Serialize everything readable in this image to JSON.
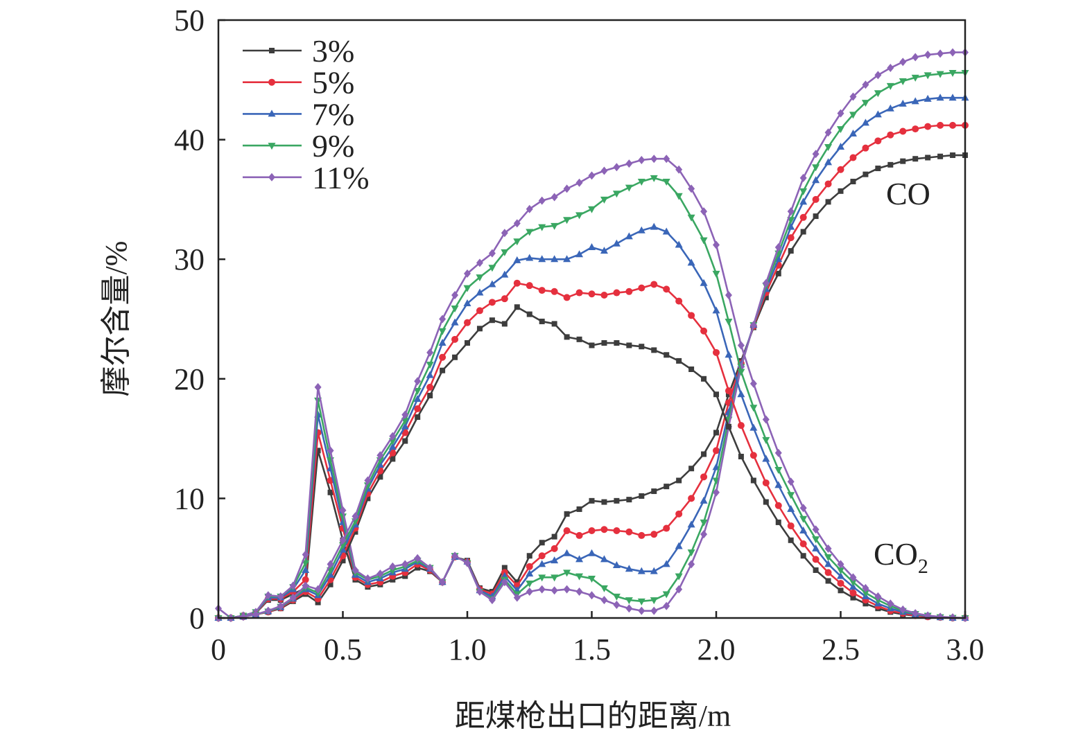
{
  "chart_data": {
    "type": "line",
    "title": "",
    "xlabel": "距煤枪出口的距离/m",
    "ylabel": "摩尔含量/%",
    "xlim": [
      0,
      3.0
    ],
    "ylim": [
      0,
      50
    ],
    "xticks": [
      "0",
      "0.5",
      "1.0",
      "1.5",
      "2.0",
      "2.5",
      "3.0"
    ],
    "xtick_values": [
      0,
      0.5,
      1.0,
      1.5,
      2.0,
      2.5,
      3.0
    ],
    "yticks": [
      "0",
      "10",
      "20",
      "30",
      "40",
      "50"
    ],
    "ytick_values": [
      0,
      10,
      20,
      30,
      40,
      50
    ],
    "grid": false,
    "legend_position": "top-left",
    "legend": [
      {
        "label": "3%",
        "color": "#3d3d3d",
        "marker": "square"
      },
      {
        "label": "5%",
        "color": "#e5303e",
        "marker": "circle"
      },
      {
        "label": "7%",
        "color": "#3a66b8",
        "marker": "triangle-up"
      },
      {
        "label": "9%",
        "color": "#3aa762",
        "marker": "triangle-down"
      },
      {
        "label": "11%",
        "color": "#8c63b6",
        "marker": "diamond"
      }
    ],
    "annotations": [
      {
        "text": "CO",
        "target": "CO"
      },
      {
        "text": "CO",
        "sub": "2",
        "target": "CO2"
      }
    ],
    "x_start": 0,
    "x_step": 0.05,
    "series": [
      {
        "name": "3% CO",
        "group": "CO",
        "legend": 0,
        "values": [
          0,
          0,
          0.2,
          0.4,
          1.5,
          1.5,
          2,
          2.5,
          14,
          10.5,
          6.5,
          3.2,
          2.6,
          2.8,
          3.2,
          3.5,
          4.2,
          3.9,
          3,
          5.1,
          4.8,
          2.5,
          2.2,
          4.2,
          3,
          5.2,
          6.3,
          6.8,
          8.7,
          9.1,
          9.8,
          9.7,
          9.8,
          9.9,
          10.2,
          10.6,
          11,
          11.5,
          12.5,
          13.7,
          15.5,
          18.7,
          21.5,
          24.3,
          26.8,
          28.8,
          30.7,
          32.3,
          33.6,
          34.8,
          35.7,
          36.5,
          37.1,
          37.6,
          37.9,
          38.2,
          38.4,
          38.5,
          38.6,
          38.7,
          38.7
        ]
      },
      {
        "name": "5% CO",
        "group": "CO",
        "legend": 1,
        "values": [
          0,
          0,
          0.2,
          0.4,
          1.6,
          1.6,
          2.2,
          3.2,
          15.5,
          11.5,
          7.5,
          3.4,
          2.8,
          3,
          3.5,
          3.8,
          4.5,
          4,
          3,
          5.1,
          4.7,
          2.4,
          2,
          3.8,
          2.7,
          4.3,
          5.2,
          5.8,
          7.3,
          6.9,
          7.3,
          7.4,
          7.3,
          7.2,
          6.9,
          7.0,
          7.5,
          8.7,
          10,
          11.8,
          14,
          18,
          21.3,
          24.4,
          27.2,
          29.5,
          31.8,
          33.5,
          35,
          36.3,
          37.5,
          38.5,
          39.3,
          39.9,
          40.4,
          40.7,
          40.9,
          41.1,
          41.2,
          41.2,
          41.2
        ]
      },
      {
        "name": "7% CO",
        "group": "CO",
        "legend": 2,
        "values": [
          0,
          0,
          0.2,
          0.45,
          1.7,
          1.7,
          2.4,
          4,
          17,
          12.5,
          8,
          3.6,
          3,
          3.3,
          3.8,
          4.1,
          4.7,
          4.1,
          3,
          5.1,
          4.7,
          2.3,
          1.8,
          3.5,
          2.3,
          3.7,
          4.5,
          4.8,
          5.4,
          4.9,
          5.4,
          4.9,
          4.4,
          4.1,
          3.9,
          3.9,
          4.5,
          6,
          7.8,
          9.8,
          12.6,
          17.2,
          21.2,
          24.5,
          27.5,
          30,
          32.7,
          34.8,
          36.6,
          38.1,
          39.4,
          40.5,
          41.4,
          42.1,
          42.6,
          43,
          43.2,
          43.4,
          43.5,
          43.5,
          43.5
        ]
      },
      {
        "name": "9% CO",
        "group": "CO",
        "legend": 3,
        "values": [
          0,
          0,
          0.2,
          0.5,
          1.8,
          1.8,
          2.6,
          4.6,
          18.2,
          13.2,
          8.5,
          3.8,
          3.2,
          3.5,
          4,
          4.3,
          4.8,
          4.2,
          3,
          5.2,
          4.6,
          2.2,
          1.6,
          3.2,
          2,
          2.9,
          3.4,
          3.4,
          3.8,
          3.5,
          3.3,
          2.5,
          1.8,
          1.5,
          1.4,
          1.5,
          2,
          3.5,
          5.5,
          8,
          11.5,
          16.6,
          21,
          24.5,
          27.8,
          30.5,
          33.3,
          35.7,
          37.7,
          39.4,
          40.9,
          42.1,
          43.1,
          43.9,
          44.5,
          44.9,
          45.2,
          45.4,
          45.5,
          45.6,
          45.6
        ]
      },
      {
        "name": "11% CO",
        "group": "CO",
        "legend": 4,
        "values": [
          0.8,
          0,
          0.2,
          0.5,
          1.9,
          1.8,
          2.7,
          5.3,
          19.3,
          14,
          9,
          4,
          3.3,
          3.7,
          4.3,
          4.5,
          5,
          4.2,
          3,
          5.2,
          4.6,
          2.2,
          1.5,
          3,
          1.7,
          2.2,
          2.4,
          2.3,
          2.4,
          2.2,
          1.9,
          1.5,
          1.1,
          0.8,
          0.6,
          0.6,
          1,
          2.4,
          4.5,
          7,
          10.5,
          16,
          21,
          24.5,
          28,
          31,
          34,
          36.8,
          38.8,
          40.6,
          42.2,
          43.6,
          44.6,
          45.4,
          46,
          46.5,
          46.9,
          47.1,
          47.2,
          47.3,
          47.3
        ]
      },
      {
        "name": "3% CO2",
        "group": "CO2",
        "legend": 0,
        "values": [
          0,
          0,
          0.1,
          0.3,
          0.5,
          0.8,
          1.4,
          2,
          1.3,
          2.8,
          4.8,
          7.2,
          10,
          11.8,
          13.3,
          14.8,
          16.8,
          18.6,
          20.7,
          21.8,
          23,
          24.2,
          24.9,
          24.6,
          26,
          25.4,
          24.8,
          24.6,
          23.5,
          23.3,
          22.8,
          23,
          23,
          22.8,
          22.7,
          22.4,
          22,
          21.5,
          20.8,
          20,
          18.7,
          16,
          13.5,
          11.5,
          9.7,
          8,
          6.5,
          5.2,
          4,
          3.1,
          2.3,
          1.7,
          1.2,
          0.8,
          0.5,
          0.3,
          0.2,
          0.1,
          0.05,
          0,
          0
        ]
      },
      {
        "name": "5% CO2",
        "group": "CO2",
        "legend": 1,
        "values": [
          0,
          0,
          0.1,
          0.3,
          0.5,
          0.85,
          1.5,
          2.2,
          1.6,
          3.2,
          5.2,
          7.5,
          10.4,
          12.3,
          13.8,
          15.5,
          17.5,
          19.3,
          21.8,
          23.3,
          24.7,
          25.7,
          26.4,
          26.7,
          28,
          27.8,
          27.4,
          27.3,
          26.8,
          27.2,
          27.1,
          27,
          27.2,
          27.3,
          27.6,
          27.9,
          27.5,
          26.5,
          25.3,
          24,
          22.2,
          19,
          16.1,
          13.6,
          11.3,
          9.4,
          7.7,
          6.2,
          4.9,
          3.8,
          2.9,
          2.1,
          1.5,
          1,
          0.6,
          0.4,
          0.2,
          0.1,
          0.05,
          0,
          0
        ]
      },
      {
        "name": "7% CO2",
        "group": "CO2",
        "legend": 2,
        "values": [
          0,
          0,
          0.1,
          0.3,
          0.55,
          0.9,
          1.6,
          2.4,
          1.9,
          3.6,
          5.7,
          7.8,
          10.8,
          12.8,
          14.3,
          16,
          18.3,
          20.3,
          23,
          24.7,
          26.3,
          27.2,
          27.9,
          28.7,
          29.9,
          30.1,
          30,
          30,
          30,
          30.4,
          31,
          30.7,
          31.3,
          31.9,
          32.4,
          32.7,
          32.3,
          31.2,
          29.7,
          28,
          25.7,
          22,
          18.7,
          15.9,
          13.3,
          11.1,
          9.1,
          7.3,
          5.8,
          4.5,
          3.5,
          2.6,
          1.8,
          1.2,
          0.8,
          0.5,
          0.3,
          0.15,
          0.05,
          0,
          0
        ]
      },
      {
        "name": "9% CO2",
        "group": "CO2",
        "legend": 3,
        "values": [
          0,
          0,
          0.1,
          0.3,
          0.55,
          0.95,
          1.65,
          2.55,
          2.1,
          4,
          6.1,
          8.1,
          11.1,
          13.2,
          14.8,
          16.5,
          19,
          21.2,
          24,
          25.9,
          27.6,
          28.5,
          29.3,
          30.6,
          31.5,
          32.3,
          32.7,
          32.8,
          33.3,
          33.7,
          34.2,
          35,
          35.5,
          36,
          36.5,
          36.8,
          36.5,
          35.3,
          33.5,
          31.6,
          28.8,
          24.8,
          20.6,
          17.6,
          14.9,
          12.4,
          10.3,
          8.3,
          6.6,
          5.1,
          4,
          3,
          2.1,
          1.5,
          1,
          0.6,
          0.35,
          0.2,
          0.08,
          0.02,
          0
        ]
      },
      {
        "name": "11% CO2",
        "group": "CO2",
        "legend": 4,
        "values": [
          0,
          0,
          0.1,
          0.3,
          0.6,
          1,
          1.7,
          2.7,
          2.4,
          4.5,
          6.5,
          8.5,
          11.5,
          13.6,
          15.2,
          17,
          19.8,
          22.2,
          25,
          27,
          28.8,
          29.7,
          30.5,
          32.2,
          33,
          34.2,
          34.9,
          35.2,
          35.9,
          36.4,
          37,
          37.4,
          37.7,
          38,
          38.3,
          38.4,
          38.4,
          37.5,
          35.9,
          34,
          31.2,
          27,
          22.8,
          19.6,
          16.6,
          13.8,
          11.4,
          9.2,
          7.4,
          5.8,
          4.5,
          3.4,
          2.5,
          1.8,
          1.2,
          0.7,
          0.4,
          0.2,
          0.1,
          0.05,
          0
        ]
      }
    ]
  }
}
